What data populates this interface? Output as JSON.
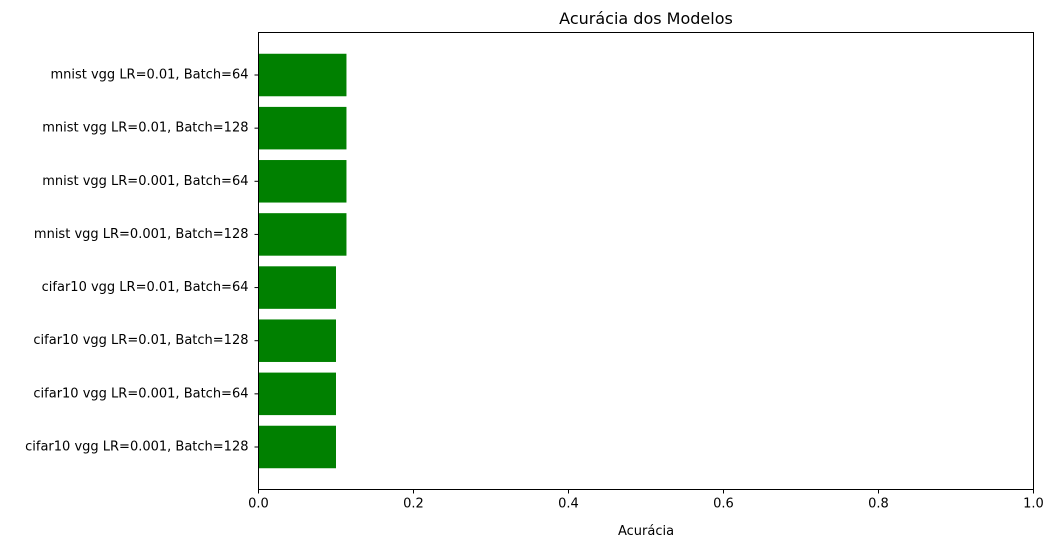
{
  "chart_data": {
    "type": "bar",
    "orientation": "horizontal",
    "title": "Acurácia dos Modelos",
    "xlabel": "Acurácia",
    "ylabel": "",
    "xlim": [
      0.0,
      1.0
    ],
    "xticks": [
      "0.0",
      "0.2",
      "0.4",
      "0.6",
      "0.8",
      "1.0"
    ],
    "grid": false,
    "bar_color": "#008000",
    "categories": [
      "mnist vgg LR=0.01, Batch=64",
      "mnist vgg LR=0.01, Batch=128",
      "mnist vgg LR=0.001, Batch=64",
      "mnist vgg LR=0.001, Batch=128",
      "cifar10 vgg LR=0.01, Batch=64",
      "cifar10 vgg LR=0.01, Batch=128",
      "cifar10 vgg LR=0.001, Batch=64",
      "cifar10 vgg LR=0.001, Batch=128"
    ],
    "values": [
      0.1135,
      0.1135,
      0.1135,
      0.1135,
      0.1,
      0.1,
      0.1,
      0.1
    ]
  }
}
